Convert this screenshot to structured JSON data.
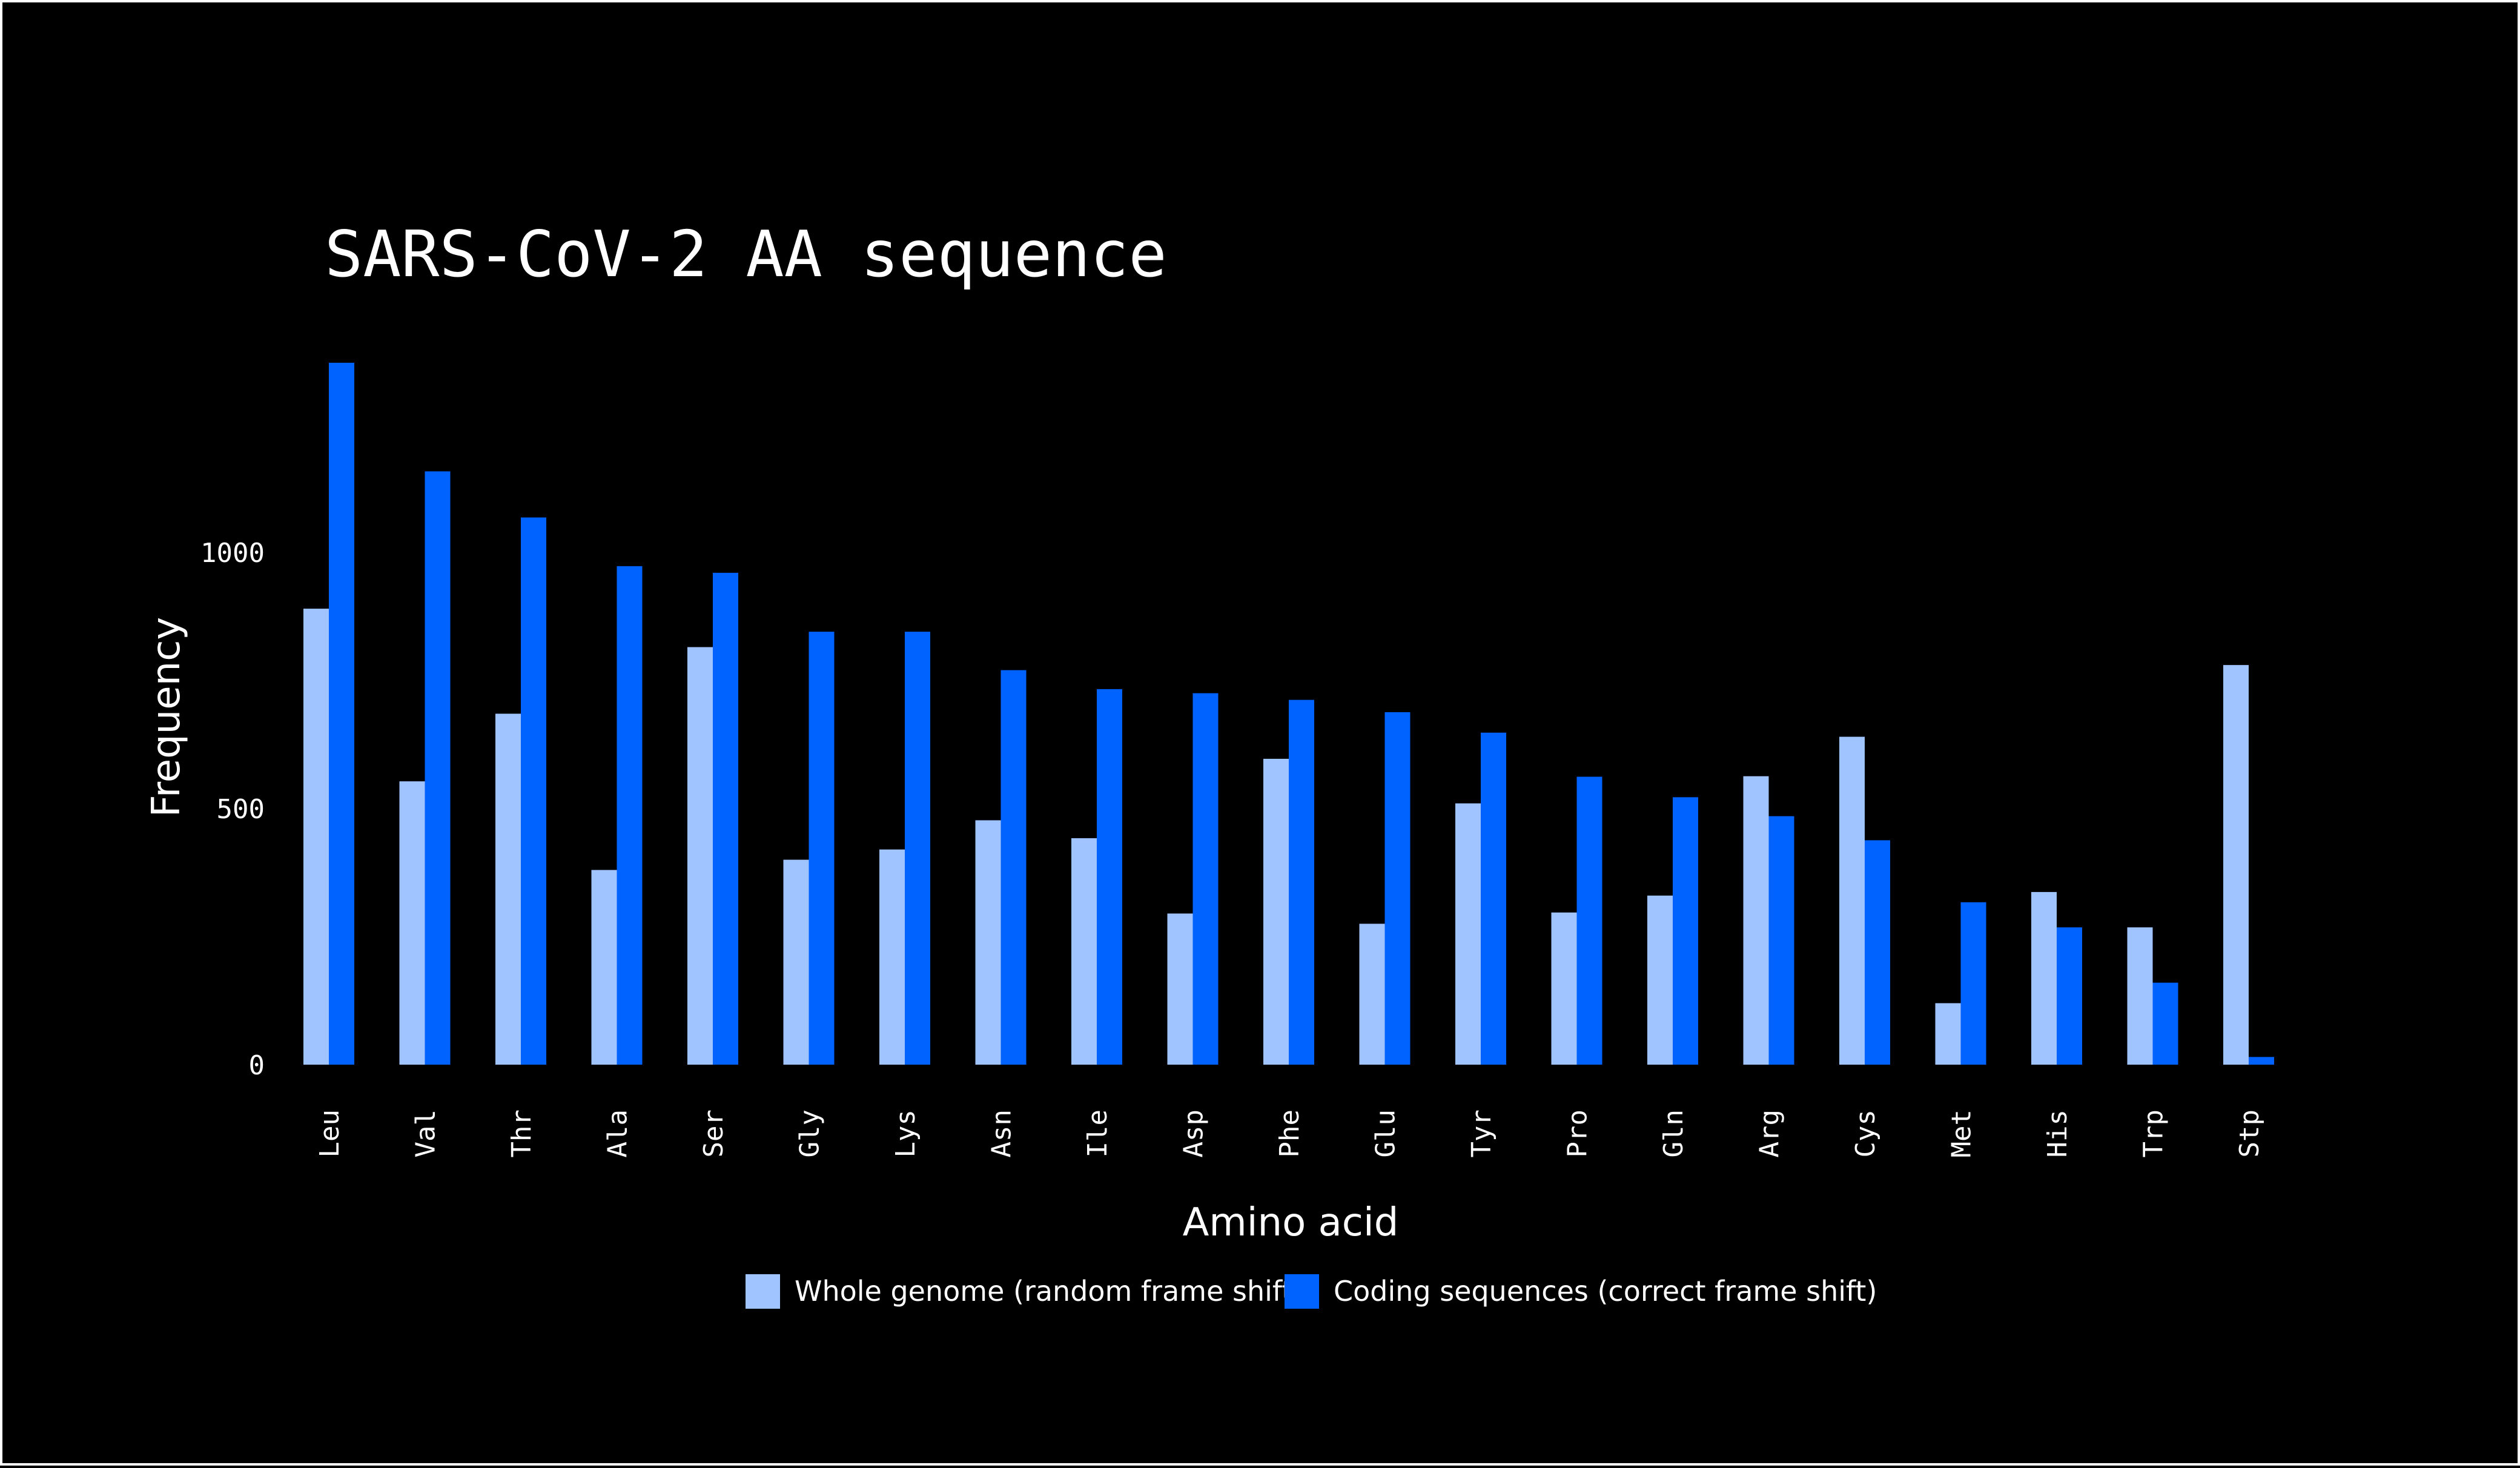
{
  "chart_data": {
    "type": "bar",
    "title": "SARS-CoV-2 AA sequence",
    "xlabel": "Amino acid",
    "ylabel": "Frequency",
    "ylim": [
      0,
      1400
    ],
    "yticks": [
      "0",
      "500",
      "1000"
    ],
    "legend_position": "bottom-center",
    "grid": false,
    "categories": [
      "Leu",
      "Val",
      "Thr",
      "Ala",
      "Ser",
      "Gly",
      "Lys",
      "Asn",
      "Ile",
      "Asp",
      "Phe",
      "Glu",
      "Tyr",
      "Pro",
      "Gln",
      "Arg",
      "Cys",
      "Met",
      "His",
      "Trp",
      "Stp"
    ],
    "series": [
      {
        "name": "Whole genome (random frame shift)",
        "color": "#a0c4ff",
        "values": [
          890,
          553,
          685,
          380,
          815,
          400,
          420,
          477,
          442,
          295,
          597,
          275,
          510,
          297,
          330,
          563,
          640,
          120,
          337,
          268,
          780
        ]
      },
      {
        "name": "Coding sequences (correct frame shift)",
        "color": "#0062ff",
        "values": [
          1370,
          1158,
          1068,
          973,
          960,
          845,
          845,
          770,
          733,
          725,
          712,
          688,
          648,
          562,
          522,
          485,
          438,
          317,
          268,
          160,
          15
        ]
      }
    ]
  }
}
